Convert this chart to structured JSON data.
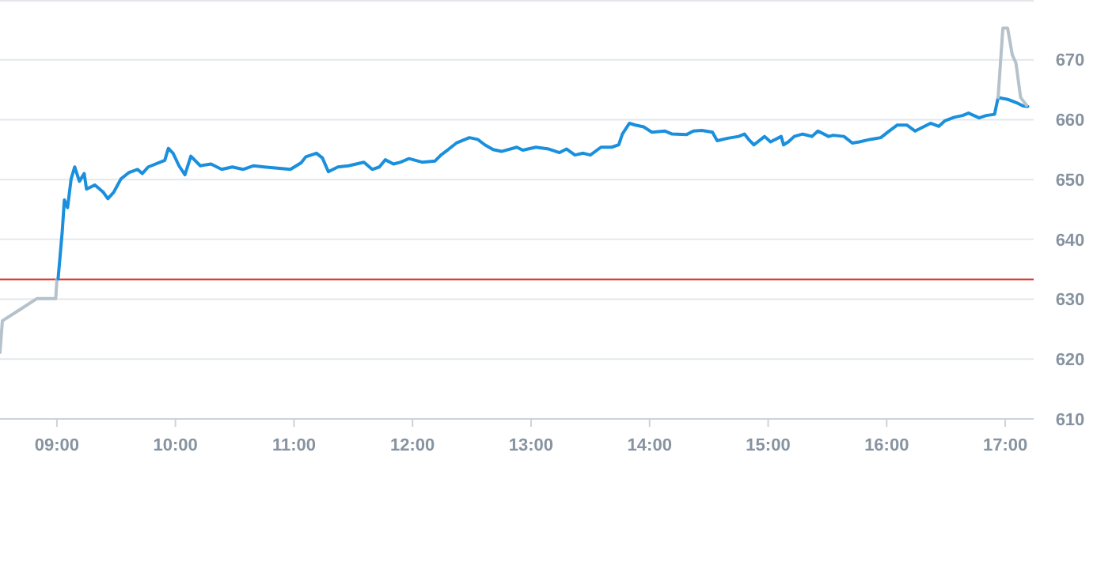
{
  "chart_data": {
    "type": "line",
    "xlim": [
      8.52,
      17.24
    ],
    "ylim": [
      610,
      680
    ],
    "xticks": [
      {
        "value": 9,
        "label": "09:00"
      },
      {
        "value": 10,
        "label": "10:00"
      },
      {
        "value": 11,
        "label": "11:00"
      },
      {
        "value": 12,
        "label": "12:00"
      },
      {
        "value": 13,
        "label": "13:00"
      },
      {
        "value": 14,
        "label": "14:00"
      },
      {
        "value": 15,
        "label": "15:00"
      },
      {
        "value": 16,
        "label": "16:00"
      },
      {
        "value": 17,
        "label": "17:00"
      }
    ],
    "yticks": [
      610,
      620,
      630,
      640,
      650,
      660,
      670,
      {
        "value": 680,
        "label": null
      }
    ],
    "grid": "y",
    "marker": "none",
    "line_style": "solid",
    "ref_lines": [
      {
        "axis": "y",
        "value": 633.3,
        "color": "#d9352b"
      }
    ],
    "series": [
      {
        "color": "#b5c2cc",
        "x": [
          8.52,
          8.54,
          8.69,
          8.83,
          8.99,
          9.0
        ],
        "values": [
          621.1,
          626.4,
          628.3,
          630.1,
          630.1,
          633.3
        ]
      },
      {
        "color": "#1a8fdd",
        "x": [
          9.01,
          9.045,
          9.063,
          9.09,
          9.12,
          9.15,
          9.19,
          9.23,
          9.25,
          9.32,
          9.39,
          9.43,
          9.48,
          9.54,
          9.61,
          9.68,
          9.72,
          9.77,
          9.86,
          9.91,
          9.94,
          9.98,
          10.03,
          10.08,
          10.13,
          10.21,
          10.3,
          10.39,
          10.48,
          10.57,
          10.66,
          10.75,
          10.97,
          11.06,
          11.1,
          11.19,
          11.24,
          11.29,
          11.37,
          11.46,
          11.59,
          11.66,
          11.72,
          11.77,
          11.84,
          11.9,
          11.97,
          12.08,
          12.19,
          12.24,
          12.3,
          12.37,
          12.48,
          12.55,
          12.61,
          12.68,
          12.75,
          12.88,
          12.93,
          13.04,
          13.15,
          13.24,
          13.3,
          13.37,
          13.44,
          13.5,
          13.59,
          13.68,
          13.74,
          13.77,
          13.83,
          13.88,
          13.95,
          14.02,
          14.13,
          14.19,
          14.31,
          14.37,
          14.44,
          14.53,
          14.57,
          14.66,
          14.75,
          14.8,
          14.84,
          14.88,
          14.97,
          15.02,
          15.11,
          15.13,
          15.17,
          15.22,
          15.29,
          15.37,
          15.42,
          15.51,
          15.55,
          15.64,
          15.71,
          15.77,
          15.86,
          15.95,
          16.02,
          16.09,
          16.17,
          16.24,
          16.31,
          16.37,
          16.44,
          16.49,
          16.57,
          16.64,
          16.69,
          16.78,
          16.84,
          16.91,
          16.94,
          17.02,
          17.11,
          17.15,
          17.19
        ],
        "values": [
          633.4,
          641.3,
          646.6,
          645.3,
          650.1,
          652.1,
          649.7,
          651.0,
          648.4,
          649.1,
          647.9,
          646.8,
          647.9,
          650.1,
          651.2,
          651.7,
          651.0,
          652.1,
          652.8,
          653.2,
          655.2,
          654.4,
          652.3,
          650.8,
          653.9,
          652.3,
          652.6,
          651.7,
          652.1,
          651.7,
          652.3,
          652.1,
          651.7,
          652.8,
          653.8,
          654.4,
          653.6,
          651.3,
          652.1,
          652.3,
          652.9,
          651.7,
          652.1,
          653.3,
          652.6,
          652.9,
          653.5,
          652.9,
          653.1,
          654.1,
          655.0,
          656.1,
          657.0,
          656.7,
          655.8,
          655.0,
          654.7,
          655.4,
          654.9,
          655.4,
          655.1,
          654.5,
          655.1,
          654.1,
          654.4,
          654.1,
          655.4,
          655.4,
          655.8,
          657.6,
          659.4,
          659.1,
          658.8,
          657.9,
          658.1,
          657.6,
          657.5,
          658.1,
          658.2,
          657.9,
          656.5,
          656.9,
          657.2,
          657.6,
          656.6,
          655.8,
          657.2,
          656.3,
          657.2,
          655.8,
          656.3,
          657.2,
          657.6,
          657.2,
          658.1,
          657.2,
          657.4,
          657.2,
          656.1,
          656.3,
          656.7,
          657.0,
          658.1,
          659.1,
          659.1,
          658.1,
          658.8,
          659.4,
          658.9,
          659.8,
          660.4,
          660.7,
          661.1,
          660.3,
          660.7,
          660.9,
          663.7,
          663.4,
          662.7,
          662.3,
          662.2
        ]
      },
      {
        "color": "#b5c2cc",
        "x": [
          16.94,
          16.98,
          17.02,
          17.06,
          17.09,
          17.13,
          17.18
        ],
        "values": [
          663.7,
          675.3,
          675.3,
          670.8,
          669.5,
          663.7,
          662.4
        ]
      }
    ]
  }
}
